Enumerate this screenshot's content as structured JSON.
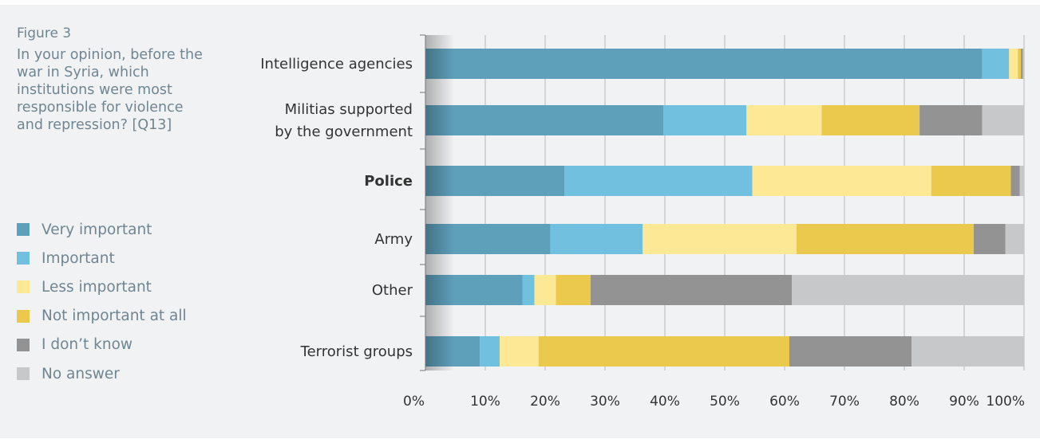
{
  "figure_label": "Figure 3",
  "figure_title": "In your opinion, before the war in Syria, which institutions were most responsible for violence and repression? [Q13]",
  "colors": {
    "background": "#f1f2f3",
    "very_important": "#5e9fba",
    "important": "#72c0e0",
    "less_important": "#fde896",
    "not_important_at_all": "#eac94c",
    "dont_know": "#939393",
    "no_answer": "#c7c8c9",
    "gridline": "#a9a9a9",
    "text": "#333333",
    "side_text": "#6f8592"
  },
  "chart_data": {
    "type": "bar",
    "orientation": "horizontal",
    "stacked": true,
    "title": "In your opinion, before the war in Syria, which institutions were most responsible for violence and repression? [Q13]",
    "xlabel": "",
    "ylabel": "",
    "xlim": [
      0,
      100
    ],
    "x_ticks": [
      "0%",
      "10%",
      "20%",
      "30%",
      "40%",
      "50%",
      "60%",
      "70%",
      "80%",
      "90%",
      "100%"
    ],
    "grid": true,
    "legend_position": "left",
    "categories": [
      {
        "label": "Intelligence agencies",
        "lines": [
          "Intelligence agencies"
        ],
        "bold": false
      },
      {
        "label": "Militias supported by the government",
        "lines": [
          "Militias supported",
          "by the government"
        ],
        "bold": false
      },
      {
        "label": "Police",
        "lines": [
          "Police"
        ],
        "bold": true
      },
      {
        "label": "Army",
        "lines": [
          "Army"
        ],
        "bold": false
      },
      {
        "label": "Other",
        "lines": [
          "Other"
        ],
        "bold": false
      },
      {
        "label": "Terrorist groups",
        "lines": [
          "Terrorist groups"
        ],
        "bold": false
      }
    ],
    "series": [
      {
        "name": "Very important",
        "color": "#5e9fba",
        "values": [
          89.3,
          39.9,
          23.2,
          20.9,
          16.2,
          9.1
        ]
      },
      {
        "name": "Important",
        "color": "#72c0e0",
        "values": [
          4.3,
          13.9,
          31.4,
          15.4,
          2.0,
          3.3
        ]
      },
      {
        "name": "Less important",
        "color": "#fde896",
        "values": [
          1.4,
          12.6,
          29.9,
          25.7,
          3.6,
          6.5
        ]
      },
      {
        "name": "Not important at all",
        "color": "#eac94c",
        "values": [
          0.5,
          16.4,
          13.3,
          29.6,
          5.8,
          41.9
        ]
      },
      {
        "name": "I don’t know",
        "color": "#939393",
        "values": [
          0.3,
          10.5,
          1.5,
          5.3,
          33.6,
          20.4
        ]
      },
      {
        "name": "No answer",
        "color": "#c7c8c9",
        "values": [
          0.2,
          7.0,
          0.7,
          3.1,
          38.8,
          18.8
        ]
      }
    ]
  }
}
